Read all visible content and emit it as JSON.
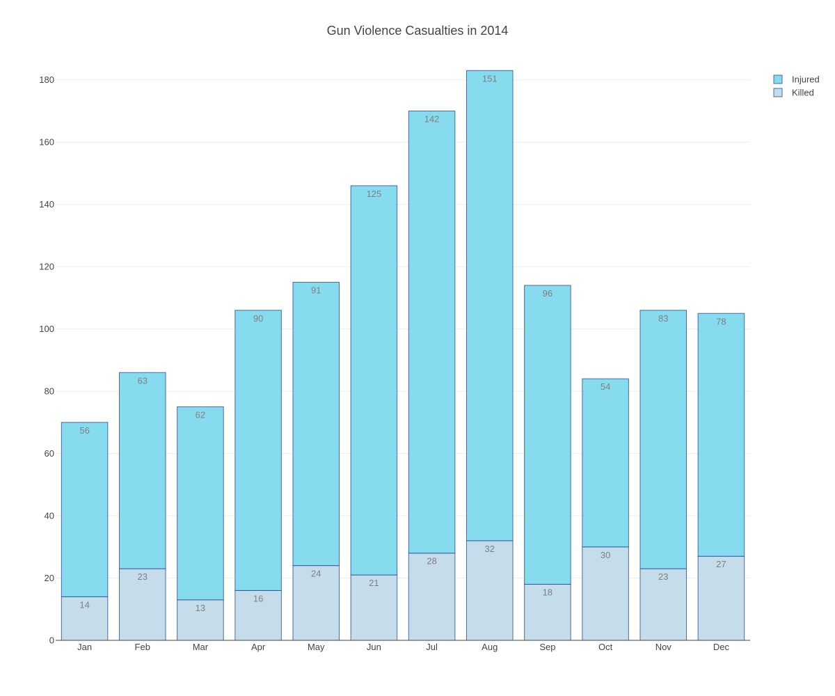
{
  "chart_data": {
    "type": "bar",
    "barmode": "stack",
    "title": "Gun Violence Casualties in 2014",
    "xlabel": "",
    "ylabel": "",
    "categories": [
      "Jan",
      "Feb",
      "Mar",
      "Apr",
      "May",
      "Jun",
      "Jul",
      "Aug",
      "Sep",
      "Oct",
      "Nov",
      "Dec"
    ],
    "series": [
      {
        "name": "Killed",
        "values": [
          14,
          23,
          13,
          16,
          24,
          21,
          28,
          32,
          18,
          30,
          23,
          27
        ],
        "color": "#c5dcea",
        "line_color": "#1f3f8f"
      },
      {
        "name": "Injured",
        "values": [
          56,
          63,
          62,
          90,
          91,
          125,
          142,
          151,
          96,
          54,
          83,
          78
        ],
        "color": "#87dbee",
        "line_color": "#1f3f8f"
      }
    ],
    "ylim": [
      0,
      190
    ],
    "yticks": [
      0,
      20,
      40,
      60,
      80,
      100,
      120,
      140,
      160,
      180
    ],
    "grid": true,
    "legend_position": "top-right",
    "legend_order": [
      "Injured",
      "Killed"
    ]
  }
}
